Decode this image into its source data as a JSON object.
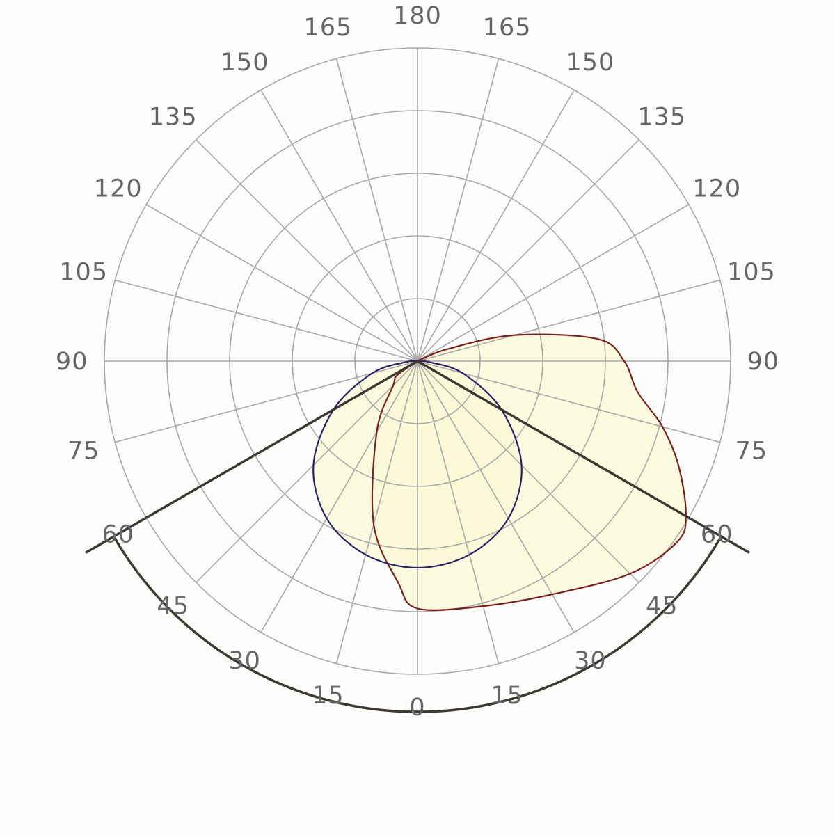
{
  "chart_data": {
    "type": "polar",
    "angular_unit": "degrees",
    "angle_ticks": [
      0,
      15,
      30,
      45,
      60,
      75,
      90,
      105,
      120,
      135,
      150,
      165,
      180
    ],
    "tick_labels": {
      "left": [
        "0",
        "15",
        "30",
        "45",
        "60",
        "75",
        "90",
        "105",
        "120",
        "135",
        "150",
        "165",
        "180"
      ],
      "right": [
        "15",
        "30",
        "45",
        "60",
        "75",
        "90",
        "105",
        "120",
        "135",
        "150",
        "165"
      ]
    },
    "radial_rings": 5,
    "radial_max": 5,
    "grid": true,
    "beam_angle_deg": 60,
    "colors": {
      "grid": "#a8a8a8",
      "beam_lines": "#3d3833",
      "fill": "#fbf8d6",
      "series_c0_c180": "#7a1f1f",
      "series_c90_c270": "#2a2268"
    },
    "series": [
      {
        "key": "c0_c180",
        "color": "#7a1f1f",
        "points": [
          [
            0,
            3.95
          ],
          [
            15,
            4.05
          ],
          [
            30,
            4.3
          ],
          [
            45,
            4.8
          ],
          [
            55,
            5.05
          ],
          [
            60,
            4.95
          ],
          [
            68,
            4.5
          ],
          [
            75,
            4.05
          ],
          [
            82,
            3.55
          ],
          [
            90,
            3.3
          ],
          [
            97,
            2.9
          ],
          [
            105,
            1.6
          ],
          [
            112,
            0.5
          ],
          [
            120,
            0
          ],
          [
            180,
            0
          ],
          [
            300,
            0
          ],
          [
            305,
            0.4
          ],
          [
            315,
            0.55
          ],
          [
            330,
            1.3
          ],
          [
            345,
            2.7
          ],
          [
            355,
            3.55
          ]
        ]
      },
      {
        "key": "c90_c270",
        "color": "#2a2268",
        "points": [
          [
            0,
            3.3
          ],
          [
            15,
            3.2
          ],
          [
            30,
            2.9
          ],
          [
            45,
            2.35
          ],
          [
            60,
            1.55
          ],
          [
            75,
            0.75
          ],
          [
            85,
            0.2
          ],
          [
            90,
            0
          ],
          [
            270,
            0
          ],
          [
            275,
            0.2
          ],
          [
            285,
            0.75
          ],
          [
            300,
            1.55
          ],
          [
            315,
            2.35
          ],
          [
            330,
            2.9
          ],
          [
            345,
            3.2
          ]
        ]
      }
    ]
  }
}
